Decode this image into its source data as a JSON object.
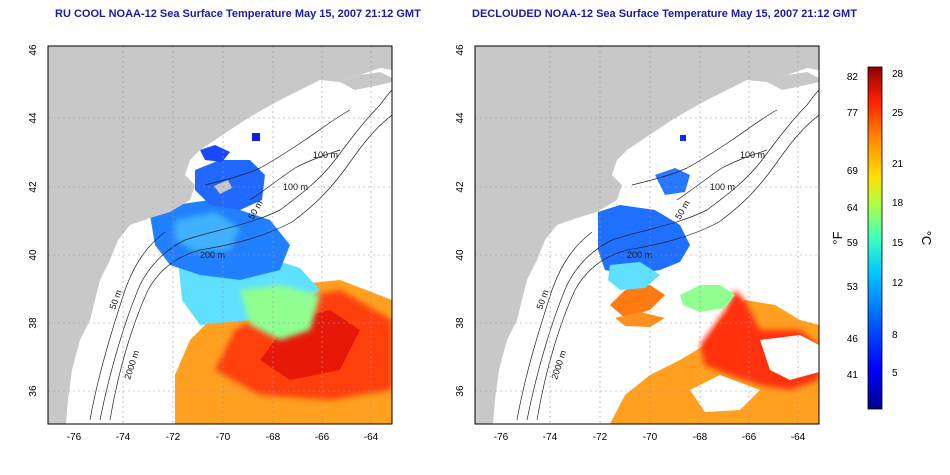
{
  "panels": [
    {
      "title": "RU COOL NOAA-12 Sea Surface Temperature May 15, 2007 21:12 GMT",
      "x_ticks": [
        "-76",
        "-74",
        "-72",
        "-70",
        "-68",
        "-66",
        "-64"
      ],
      "y_ticks": [
        "46",
        "44",
        "42",
        "40",
        "38",
        "36"
      ],
      "contour_labels": [
        "100 m",
        "100 m",
        "50 m",
        "200 m",
        "50 m",
        "2000 m"
      ]
    },
    {
      "title": "DECLOUDED NOAA-12 Sea Surface Temperature May 15, 2007 21:12 GMT",
      "x_ticks": [
        "-76",
        "-74",
        "-72",
        "-70",
        "-68",
        "-66",
        "-64"
      ],
      "y_ticks": [
        "46",
        "44",
        "42",
        "40",
        "38",
        "36"
      ],
      "contour_labels": [
        "100 m",
        "100 m",
        "50 m",
        "200 m",
        "50 m",
        "2000 m"
      ]
    }
  ],
  "colorbar": {
    "f_label": "°F",
    "c_label": "°C",
    "f_ticks": [
      "82",
      "77",
      "69",
      "64",
      "59",
      "53",
      "46",
      "41"
    ],
    "c_ticks": [
      "28",
      "25",
      "21",
      "18",
      "15",
      "12",
      "8",
      "5"
    ],
    "colors": [
      "#00008f",
      "#0000ff",
      "#0060ff",
      "#00bfff",
      "#3fffbf",
      "#bfff3f",
      "#ffdf00",
      "#ff8000",
      "#ff2000",
      "#8f0000"
    ]
  },
  "colors": {
    "land": "#c8c8c8",
    "ocean": "#ffffff",
    "title": "#1a1aa6"
  }
}
